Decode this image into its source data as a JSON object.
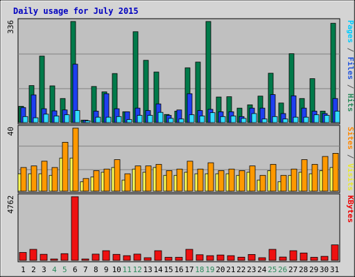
{
  "chart_data": {
    "type": "bar",
    "title": "Daily usage for July 2015",
    "x": [
      "1",
      "2",
      "3",
      "4",
      "5",
      "6",
      "7",
      "8",
      "9",
      "10",
      "11",
      "12",
      "13",
      "14",
      "15",
      "16",
      "17",
      "18",
      "19",
      "20",
      "21",
      "22",
      "23",
      "24",
      "25",
      "26",
      "27",
      "28",
      "29",
      "30",
      "31"
    ],
    "weekend_days": [
      4,
      5,
      11,
      12,
      18,
      19,
      25,
      26
    ],
    "weekend_color": "#2b8a5b",
    "weekday_color": "#000000",
    "panels": [
      {
        "id": "hits",
        "ymax_label": "336",
        "ymax": 336,
        "right_label_parts": [
          {
            "text": "Pages",
            "color": "#00ccff"
          },
          {
            "text": " / ",
            "color": "#555555"
          },
          {
            "text": "Files",
            "color": "#2255dd"
          },
          {
            "text": " / ",
            "color": "#555555"
          },
          {
            "text": "Hits",
            "color": "#2b8a5b"
          }
        ],
        "series": [
          {
            "name": "Hits",
            "color": "#007a4a",
            "values": [
              54,
              123,
              221,
              122,
              80,
              336,
              8,
              120,
              102,
              163,
              36,
              302,
              207,
              168,
              27,
              38,
              182,
              201,
              336,
              85,
              86,
              48,
              59,
              88,
              164,
              65,
              229,
              80,
              146,
              38,
              330
            ]
          },
          {
            "name": "Files",
            "color": "#1e3ff0",
            "values": [
              50,
              92,
              46,
              39,
              42,
              194,
              8,
              38,
              96,
              46,
              36,
              48,
              40,
              62,
              24,
              42,
              96,
              40,
              44,
              36,
              36,
              20,
              48,
              48,
              93,
              30,
              89,
              48,
              38,
              30,
              80
            ]
          },
          {
            "name": "Pages",
            "color": "#33ddff",
            "values": [
              20,
              16,
              28,
              22,
              26,
              40,
              6,
              18,
              18,
              20,
              10,
              24,
              24,
              34,
              14,
              12,
              26,
              22,
              33,
              20,
              22,
              14,
              30,
              12,
              20,
              12,
              18,
              18,
              26,
              24,
              38
            ]
          }
        ]
      },
      {
        "id": "visits",
        "ymax_label": "40",
        "ymax": 40,
        "right_label_parts": [
          {
            "text": "Sites",
            "color": "#ff8800"
          },
          {
            "text": " / ",
            "color": "#555555"
          },
          {
            "text": "Visits",
            "color": "#e8e830"
          }
        ],
        "series": [
          {
            "name": "Visits",
            "color": "#ffff55",
            "values": [
              11,
              11,
              11,
              10,
              21,
              21,
              6,
              9,
              12,
              15,
              7,
              14,
              12,
              15,
              10,
              10,
              12,
              11,
              11,
              11,
              11,
              10,
              12,
              7,
              13,
              6,
              10,
              12,
              11,
              13,
              15
            ]
          },
          {
            "name": "Sites",
            "color": "#ff9900",
            "values": [
              15,
              16,
              19,
              15,
              31,
              40,
              8,
              13,
              14,
              20,
              11,
              16,
              16,
              17,
              13,
              14,
              19,
              14,
              18,
              13,
              14,
              13,
              16,
              10,
              17,
              10,
              14,
              20,
              17,
              22,
              24
            ]
          }
        ]
      },
      {
        "id": "kbytes",
        "ymax_label": "4762",
        "ymax": 4762,
        "right_label_parts": [
          {
            "text": "KBytes",
            "color": "#ee0000"
          }
        ],
        "series": [
          {
            "name": "KBytes",
            "color": "#ee1111",
            "values": [
              594,
              826,
              457,
              104,
              504,
              4762,
              104,
              470,
              724,
              452,
              354,
              470,
              202,
              724,
              232,
              232,
              826,
              424,
              354,
              404,
              354,
              242,
              444,
              202,
              826,
              252,
              724,
              554,
              232,
              304,
              1160
            ]
          }
        ]
      }
    ]
  }
}
